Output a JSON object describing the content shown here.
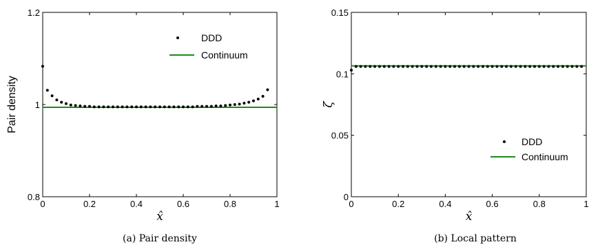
{
  "chart_data": [
    {
      "type": "scatter",
      "caption": "(a) Pair density",
      "xlabel": "x̂",
      "ylabel": "Pair density",
      "xlim": [
        0,
        1
      ],
      "ylim": [
        0.8,
        1.2
      ],
      "xticks": [
        "0",
        "0.2",
        "0.4",
        "0.6",
        "0.8",
        "1"
      ],
      "yticks": [
        "0.8",
        "1",
        "1.2"
      ],
      "xtick_values": [
        0,
        0.2,
        0.4,
        0.6,
        0.8,
        1
      ],
      "ytick_values": [
        0.8,
        1.0,
        1.2
      ],
      "legend_position": "top-right",
      "series": [
        {
          "name": "DDD",
          "kind": "markers",
          "color": "#000000",
          "x": [
            0.0,
            0.02,
            0.04,
            0.06,
            0.08,
            0.1,
            0.12,
            0.14,
            0.16,
            0.18,
            0.2,
            0.22,
            0.24,
            0.26,
            0.28,
            0.3,
            0.32,
            0.34,
            0.36,
            0.38,
            0.4,
            0.42,
            0.44,
            0.46,
            0.48,
            0.5,
            0.52,
            0.54,
            0.56,
            0.58,
            0.6,
            0.62,
            0.64,
            0.66,
            0.68,
            0.7,
            0.72,
            0.74,
            0.76,
            0.78,
            0.8,
            0.82,
            0.84,
            0.86,
            0.88,
            0.9,
            0.92,
            0.94,
            0.96
          ],
          "y": [
            1.083,
            1.031,
            1.019,
            1.01,
            1.005,
            1.002,
            0.999,
            0.998,
            0.997,
            0.996,
            0.996,
            0.995,
            0.995,
            0.995,
            0.995,
            0.995,
            0.995,
            0.995,
            0.995,
            0.995,
            0.995,
            0.995,
            0.995,
            0.995,
            0.995,
            0.995,
            0.995,
            0.995,
            0.995,
            0.995,
            0.995,
            0.995,
            0.995,
            0.996,
            0.996,
            0.996,
            0.996,
            0.997,
            0.997,
            0.998,
            0.999,
            1.0,
            1.001,
            1.003,
            1.005,
            1.008,
            1.012,
            1.018,
            1.032
          ]
        },
        {
          "name": "Continuum",
          "kind": "line",
          "color": "#1a8a1a",
          "x": [
            0,
            1
          ],
          "y": [
            0.994,
            0.994
          ]
        }
      ]
    },
    {
      "type": "scatter",
      "caption": "(b) Local pattern",
      "xlabel": "x̂",
      "ylabel": "ζ",
      "xlim": [
        0,
        1
      ],
      "ylim": [
        0,
        0.15
      ],
      "xticks": [
        "0",
        "0.2",
        "0.4",
        "0.6",
        "0.8",
        "1"
      ],
      "yticks": [
        "0",
        "0.05",
        "0.1",
        "0.15"
      ],
      "xtick_values": [
        0,
        0.2,
        0.4,
        0.6,
        0.8,
        1
      ],
      "ytick_values": [
        0,
        0.05,
        0.1,
        0.15
      ],
      "legend_position": "bottom-right",
      "series": [
        {
          "name": "DDD",
          "kind": "markers",
          "color": "#000000",
          "x": [
            0.0,
            0.02,
            0.04,
            0.06,
            0.08,
            0.1,
            0.12,
            0.14,
            0.16,
            0.18,
            0.2,
            0.22,
            0.24,
            0.26,
            0.28,
            0.3,
            0.32,
            0.34,
            0.36,
            0.38,
            0.4,
            0.42,
            0.44,
            0.46,
            0.48,
            0.5,
            0.52,
            0.54,
            0.56,
            0.58,
            0.6,
            0.62,
            0.64,
            0.66,
            0.68,
            0.7,
            0.72,
            0.74,
            0.76,
            0.78,
            0.8,
            0.82,
            0.84,
            0.86,
            0.88,
            0.9,
            0.92,
            0.94,
            0.96,
            0.98
          ],
          "y": [
            0.103,
            0.106,
            0.106,
            0.106,
            0.106,
            0.106,
            0.106,
            0.106,
            0.106,
            0.106,
            0.106,
            0.106,
            0.106,
            0.106,
            0.106,
            0.106,
            0.106,
            0.106,
            0.106,
            0.106,
            0.106,
            0.106,
            0.106,
            0.106,
            0.106,
            0.106,
            0.106,
            0.106,
            0.106,
            0.106,
            0.106,
            0.106,
            0.106,
            0.106,
            0.106,
            0.106,
            0.106,
            0.106,
            0.106,
            0.106,
            0.106,
            0.106,
            0.106,
            0.106,
            0.106,
            0.106,
            0.106,
            0.106,
            0.106,
            0.106
          ]
        },
        {
          "name": "Continuum",
          "kind": "line",
          "color": "#1a8a1a",
          "x": [
            0,
            1
          ],
          "y": [
            0.1065,
            0.1065
          ]
        }
      ]
    }
  ]
}
